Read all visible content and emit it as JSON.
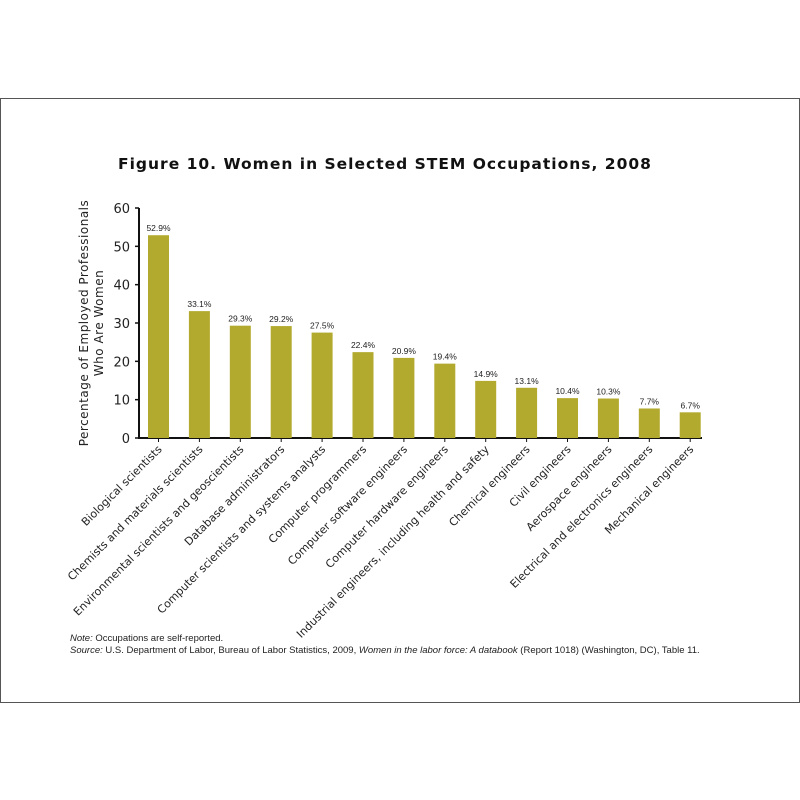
{
  "title": "Figure 10. Women in Selected STEM Occupations, 2008",
  "chart_data": {
    "type": "bar",
    "title": "Figure 10. Women in Selected STEM Occupations, 2008",
    "xlabel": "",
    "ylabel": "Percentage of Employed Professionals Who Are Women",
    "ylabel_lines": [
      "Percentage of Employed Professionals",
      "Who Are Women"
    ],
    "ylim": [
      0,
      60
    ],
    "yticks": [
      0,
      10,
      20,
      30,
      40,
      50,
      60
    ],
    "grid": false,
    "bar_color": "#b2aa2e",
    "categories": [
      "Biological scientists",
      "Chemists and materials scientists",
      "Environmental scientists and geoscientists",
      "Database administrators",
      "Computer scientists and systems analysts",
      "Computer programmers",
      "Computer software engineers",
      "Computer hardware engineers",
      "Industrial engineers, including health and safety",
      "Chemical engineers",
      "Civil engineers",
      "Aerospace engineers",
      "Electrical and electronics engineers",
      "Mechanical engineers"
    ],
    "values": [
      52.9,
      33.1,
      29.3,
      29.2,
      27.5,
      22.4,
      20.9,
      19.4,
      14.9,
      13.1,
      10.4,
      10.3,
      7.7,
      6.7
    ],
    "data_labels": [
      "52.9%",
      "33.1%",
      "29.3%",
      "29.2%",
      "27.5%",
      "22.4%",
      "20.9%",
      "19.4%",
      "14.9%",
      "13.1%",
      "10.4%",
      "10.3%",
      "7.7%",
      "6.7%"
    ]
  },
  "note": {
    "label": "Note:",
    "text": " Occupations are self-reported."
  },
  "source": {
    "label": "Source:",
    "text1": " U.S. Department of Labor, Bureau of Labor Statistics, 2009, ",
    "title": "Women in the labor force: A databook",
    "text2": " (Report 1018) (Washington, DC), Table 11."
  }
}
